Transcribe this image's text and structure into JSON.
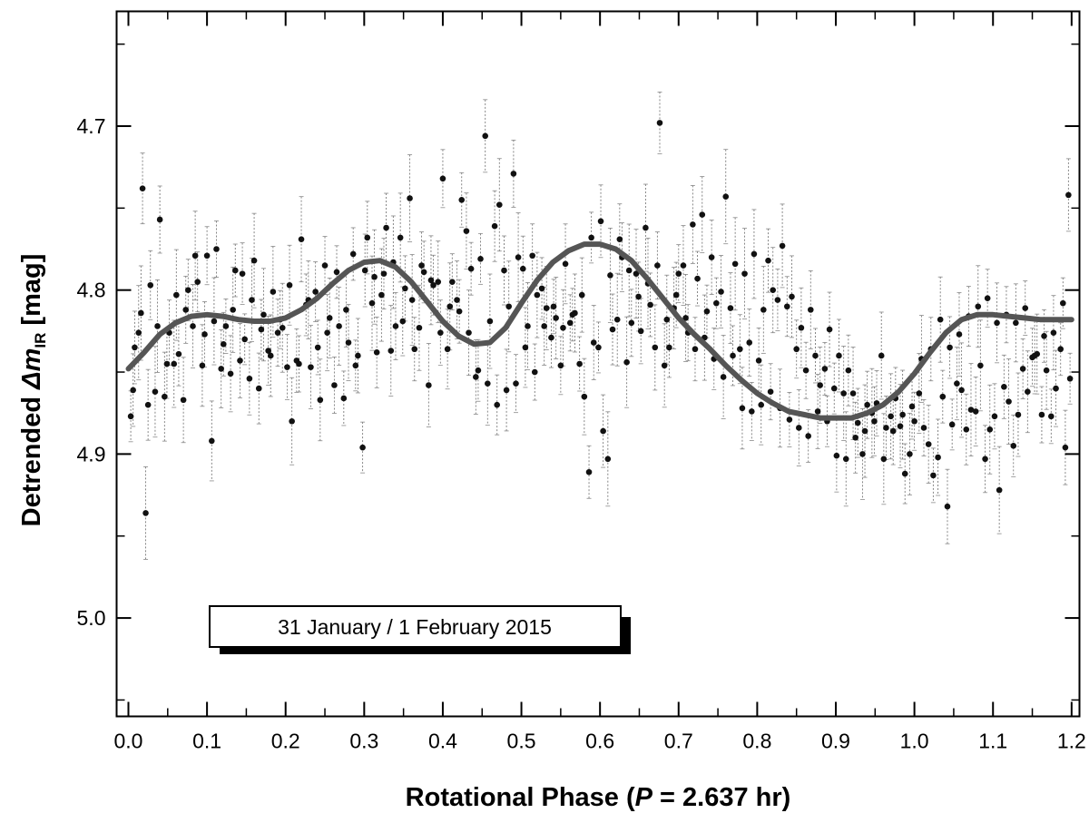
{
  "chart_data": {
    "type": "scatter",
    "xlabel": {
      "prefix": "Rotational Phase (",
      "var": "P",
      "suffix": " = 2.637 hr)"
    },
    "ylabel": {
      "prefix": "Detrended ",
      "delta": "Δ",
      "var": "m",
      "sub": "IR",
      "suffix": " [mag]"
    },
    "annotation": "31 January / 1 February 2015",
    "xlim": [
      -0.015,
      1.21
    ],
    "ylim": [
      5.06,
      4.63
    ],
    "y_inverted": true,
    "x_ticks": [
      "0.0",
      "0.1",
      "0.2",
      "0.3",
      "0.4",
      "0.5",
      "0.6",
      "0.7",
      "0.8",
      "0.9",
      "1.0",
      "1.1",
      "1.2"
    ],
    "y_ticks": [
      "4.7",
      "4.8",
      "4.9",
      "5.0"
    ],
    "fit_curve": {
      "x": [
        0.0,
        0.02,
        0.04,
        0.06,
        0.08,
        0.1,
        0.12,
        0.14,
        0.16,
        0.18,
        0.2,
        0.22,
        0.24,
        0.26,
        0.28,
        0.3,
        0.32,
        0.34,
        0.36,
        0.38,
        0.4,
        0.42,
        0.44,
        0.46,
        0.48,
        0.5,
        0.52,
        0.54,
        0.56,
        0.58,
        0.6,
        0.62,
        0.64,
        0.66,
        0.68,
        0.7,
        0.72,
        0.74,
        0.76,
        0.78,
        0.8,
        0.82,
        0.84,
        0.86,
        0.88,
        0.9,
        0.92,
        0.94,
        0.96,
        0.98,
        1.0,
        1.02,
        1.04,
        1.06,
        1.08,
        1.1,
        1.12,
        1.14,
        1.16,
        1.18,
        1.2
      ],
      "y": [
        4.848,
        4.838,
        4.827,
        4.82,
        4.816,
        4.815,
        4.816,
        4.818,
        4.819,
        4.819,
        4.817,
        4.812,
        4.805,
        4.796,
        4.788,
        4.783,
        4.782,
        4.786,
        4.795,
        4.807,
        4.819,
        4.828,
        4.833,
        4.832,
        4.823,
        4.808,
        4.794,
        4.783,
        4.776,
        4.772,
        4.772,
        4.775,
        4.782,
        4.793,
        4.805,
        4.817,
        4.827,
        4.836,
        4.846,
        4.855,
        4.863,
        4.869,
        4.874,
        4.876,
        4.878,
        4.878,
        4.878,
        4.875,
        4.87,
        4.862,
        4.851,
        4.838,
        4.826,
        4.818,
        4.815,
        4.815,
        4.816,
        4.817,
        4.818,
        4.818,
        4.818
      ]
    },
    "points": {
      "x": [
        0.003,
        0.008,
        0.013,
        0.018,
        0.022,
        0.028,
        0.034,
        0.04,
        0.046,
        0.052,
        0.058,
        0.064,
        0.07,
        0.076,
        0.082,
        0.088,
        0.094,
        0.1,
        0.106,
        0.112,
        0.118,
        0.124,
        0.13,
        0.136,
        0.142,
        0.148,
        0.154,
        0.16,
        0.166,
        0.172,
        0.178,
        0.184,
        0.19,
        0.196,
        0.202,
        0.208,
        0.214,
        0.22,
        0.226,
        0.232,
        0.238,
        0.244,
        0.25,
        0.256,
        0.262,
        0.268,
        0.274,
        0.28,
        0.286,
        0.292,
        0.298,
        0.304,
        0.31,
        0.316,
        0.322,
        0.328,
        0.334,
        0.34,
        0.346,
        0.352,
        0.358,
        0.364,
        0.37,
        0.376,
        0.382,
        0.388,
        0.394,
        0.4,
        0.406,
        0.412,
        0.418,
        0.424,
        0.43,
        0.436,
        0.442,
        0.448,
        0.454,
        0.46,
        0.466,
        0.472,
        0.478,
        0.484,
        0.49,
        0.496,
        0.502,
        0.508,
        0.514,
        0.52,
        0.526,
        0.532,
        0.538,
        0.544,
        0.55,
        0.556,
        0.562,
        0.568,
        0.574,
        0.58,
        0.586,
        0.592,
        0.598,
        0.604,
        0.61,
        0.616,
        0.622,
        0.628,
        0.634,
        0.64,
        0.646,
        0.652,
        0.658,
        0.664,
        0.67,
        0.676,
        0.682,
        0.688,
        0.694,
        0.7,
        0.706,
        0.712,
        0.718,
        0.724,
        0.73,
        0.736,
        0.742,
        0.748,
        0.754,
        0.76,
        0.766,
        0.772,
        0.778,
        0.784,
        0.79,
        0.796,
        0.802,
        0.808,
        0.814,
        0.82,
        0.826,
        0.832,
        0.838,
        0.844,
        0.85,
        0.856,
        0.862,
        0.868,
        0.874,
        0.88,
        0.886,
        0.892,
        0.898,
        0.904,
        0.91,
        0.916,
        0.922,
        0.928,
        0.934,
        0.94,
        0.946,
        0.952,
        0.958,
        0.964,
        0.97,
        0.976,
        0.982,
        0.988,
        0.994,
        1.0,
        1.006,
        1.012,
        1.018,
        1.024,
        1.03,
        1.036,
        1.042,
        1.048,
        1.054,
        1.06,
        1.066,
        1.072,
        1.078,
        1.084,
        1.09,
        1.096,
        1.102,
        1.108,
        1.114,
        1.12,
        1.126,
        1.132,
        1.138,
        1.144,
        1.15,
        1.156,
        1.162,
        1.168,
        1.174,
        1.18,
        1.186,
        1.192,
        1.198,
        0.006,
        0.016,
        0.025,
        0.037,
        0.049,
        0.061,
        0.073,
        0.085,
        0.097,
        0.109,
        0.121,
        0.133,
        0.145,
        0.157,
        0.169,
        0.181,
        0.193,
        0.205,
        0.217,
        0.229,
        0.241,
        0.253,
        0.265,
        0.277,
        0.289,
        0.301,
        0.313,
        0.325,
        0.337,
        0.349,
        0.361,
        0.373,
        0.385,
        0.397,
        0.409,
        0.421,
        0.433,
        0.445,
        0.457,
        0.469,
        0.481,
        0.493,
        0.505,
        0.517,
        0.529,
        0.541,
        0.553,
        0.565,
        0.577,
        0.589,
        0.601,
        0.613,
        0.625,
        0.637,
        0.649,
        0.661,
        0.673,
        0.685,
        0.697,
        0.709,
        0.721,
        0.733,
        0.745,
        0.757,
        0.769,
        0.781,
        0.793,
        0.805,
        0.817,
        0.829,
        0.841,
        0.853,
        0.865,
        0.877,
        0.889,
        0.901,
        0.913,
        0.925,
        0.937,
        0.949,
        0.961,
        0.973,
        0.985,
        0.997,
        1.009,
        1.021,
        1.033,
        1.045,
        1.057,
        1.069,
        1.081,
        1.093,
        1.105,
        1.117,
        1.129,
        1.141,
        1.153,
        1.165,
        1.177,
        1.189,
        1.196
      ],
      "y": [
        4.877,
        4.835,
        4.826,
        4.738,
        4.936,
        4.797,
        4.862,
        4.757,
        4.865,
        4.826,
        4.845,
        4.839,
        4.867,
        4.8,
        4.822,
        4.795,
        4.846,
        4.779,
        4.892,
        4.775,
        4.848,
        4.822,
        4.851,
        4.788,
        4.843,
        4.83,
        4.854,
        4.782,
        4.86,
        4.815,
        4.837,
        4.801,
        4.826,
        4.823,
        4.847,
        4.88,
        4.843,
        4.769,
        4.809,
        4.847,
        4.801,
        4.867,
        4.785,
        4.817,
        4.858,
        4.822,
        4.866,
        4.832,
        4.778,
        4.84,
        4.896,
        4.768,
        4.808,
        4.838,
        4.803,
        4.762,
        4.837,
        4.822,
        4.768,
        4.799,
        4.744,
        4.836,
        4.823,
        4.789,
        4.858,
        4.797,
        4.795,
        4.732,
        4.836,
        4.795,
        4.806,
        4.745,
        4.764,
        4.787,
        4.853,
        4.781,
        4.706,
        4.819,
        4.761,
        4.748,
        4.788,
        4.81,
        4.729,
        4.78,
        4.787,
        4.822,
        4.779,
        4.803,
        4.799,
        4.811,
        4.829,
        4.817,
        4.846,
        4.784,
        4.82,
        4.814,
        4.845,
        4.865,
        4.911,
        4.832,
        4.835,
        4.886,
        4.903,
        4.824,
        4.818,
        4.78,
        4.844,
        4.82,
        4.79,
        4.825,
        4.762,
        4.809,
        4.835,
        4.698,
        4.846,
        4.835,
        4.811,
        4.79,
        4.785,
        4.826,
        4.76,
        4.793,
        4.754,
        4.813,
        4.78,
        4.808,
        4.801,
        4.743,
        4.811,
        4.784,
        4.836,
        4.79,
        4.832,
        4.778,
        4.843,
        4.812,
        4.782,
        4.8,
        4.806,
        4.773,
        4.81,
        4.804,
        4.836,
        4.823,
        4.849,
        4.812,
        4.84,
        4.858,
        4.848,
        4.824,
        4.86,
        4.84,
        4.863,
        4.849,
        4.863,
        4.881,
        4.9,
        4.87,
        4.875,
        4.869,
        4.84,
        4.884,
        4.877,
        4.866,
        4.883,
        4.912,
        4.9,
        4.88,
        4.863,
        4.884,
        4.894,
        4.913,
        4.902,
        4.865,
        4.932,
        4.882,
        4.857,
        4.861,
        4.885,
        4.873,
        4.874,
        4.846,
        4.903,
        4.885,
        4.877,
        4.922,
        4.859,
        4.868,
        4.895,
        4.876,
        4.848,
        4.862,
        4.841,
        4.839,
        4.876,
        4.849,
        4.877,
        4.86,
        4.836,
        4.896,
        4.854,
        4.861,
        4.814,
        4.87,
        4.822,
        4.845,
        4.803,
        4.812,
        4.779,
        4.827,
        4.819,
        4.833,
        4.812,
        4.79,
        4.806,
        4.824,
        4.84,
        4.818,
        4.797,
        4.845,
        4.806,
        4.835,
        4.826,
        4.789,
        4.812,
        4.846,
        4.788,
        4.792,
        4.79,
        4.783,
        4.819,
        4.806,
        4.785,
        4.794,
        4.826,
        4.81,
        4.813,
        4.826,
        4.849,
        4.857,
        4.87,
        4.861,
        4.857,
        4.835,
        4.85,
        4.822,
        4.81,
        4.823,
        4.815,
        4.803,
        4.768,
        4.758,
        4.791,
        4.769,
        4.788,
        4.804,
        4.796,
        4.785,
        4.818,
        4.803,
        4.817,
        4.836,
        4.829,
        4.842,
        4.853,
        4.84,
        4.872,
        4.874,
        4.87,
        4.862,
        4.872,
        4.879,
        4.884,
        4.889,
        4.874,
        4.88,
        4.901,
        4.903,
        4.89,
        4.886,
        4.88,
        4.903,
        4.886,
        4.876,
        4.871,
        4.842,
        4.836,
        4.818,
        4.835,
        4.827,
        4.816,
        4.81,
        4.805,
        4.82,
        4.815,
        4.82,
        4.811,
        4.84,
        4.828,
        4.826,
        4.808,
        4.742
      ]
    },
    "error_bars": true,
    "grid": false,
    "legend": "none"
  }
}
